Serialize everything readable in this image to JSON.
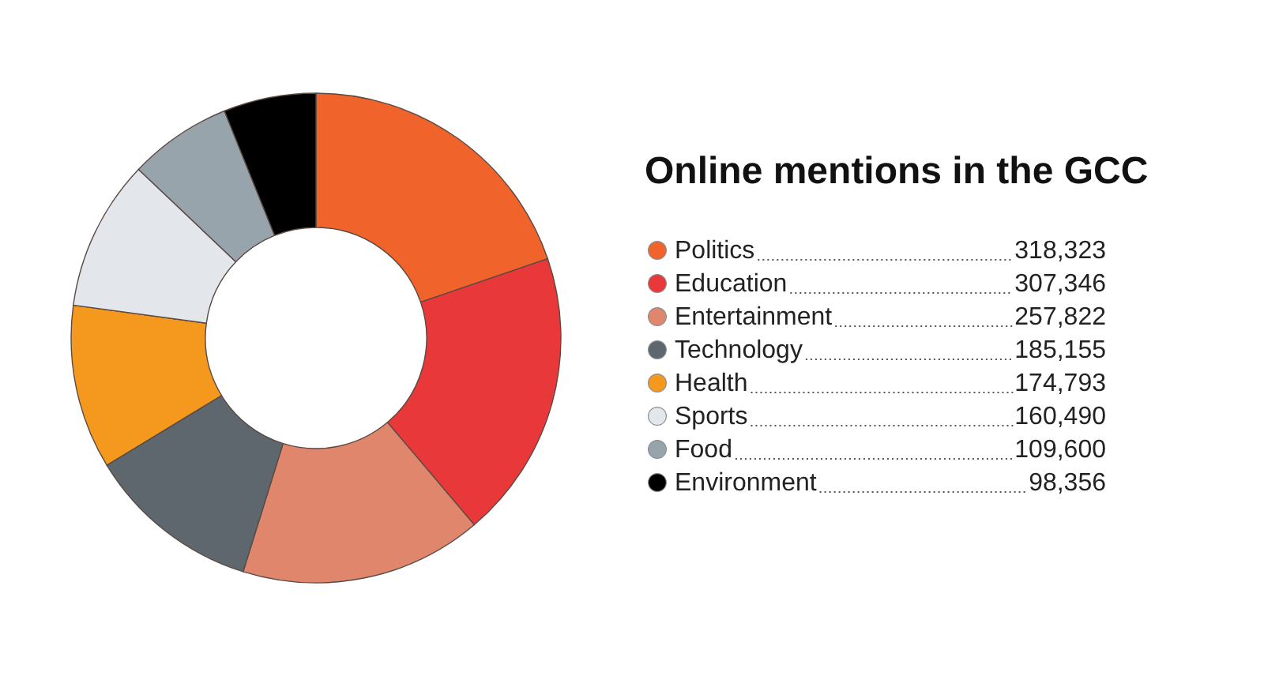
{
  "chart_data": {
    "type": "donut",
    "title": "Online mentions in the GCC",
    "categories": [
      "Politics",
      "Education",
      "Entertainment",
      "Technology",
      "Health",
      "Sports",
      "Food",
      "Environment"
    ],
    "values": [
      318323,
      307346,
      257822,
      185155,
      174793,
      160490,
      109600,
      98356
    ],
    "colors": [
      "#f0632a",
      "#e9383a",
      "#e0866c",
      "#5f676e",
      "#f4981e",
      "#e3e7ec",
      "#97a4ac",
      "#000000"
    ],
    "value_labels": [
      "318,323",
      "307,346",
      "257,822",
      "185,155",
      "174,793",
      "160,490",
      "109,600",
      "98,356"
    ],
    "legend": "right"
  }
}
